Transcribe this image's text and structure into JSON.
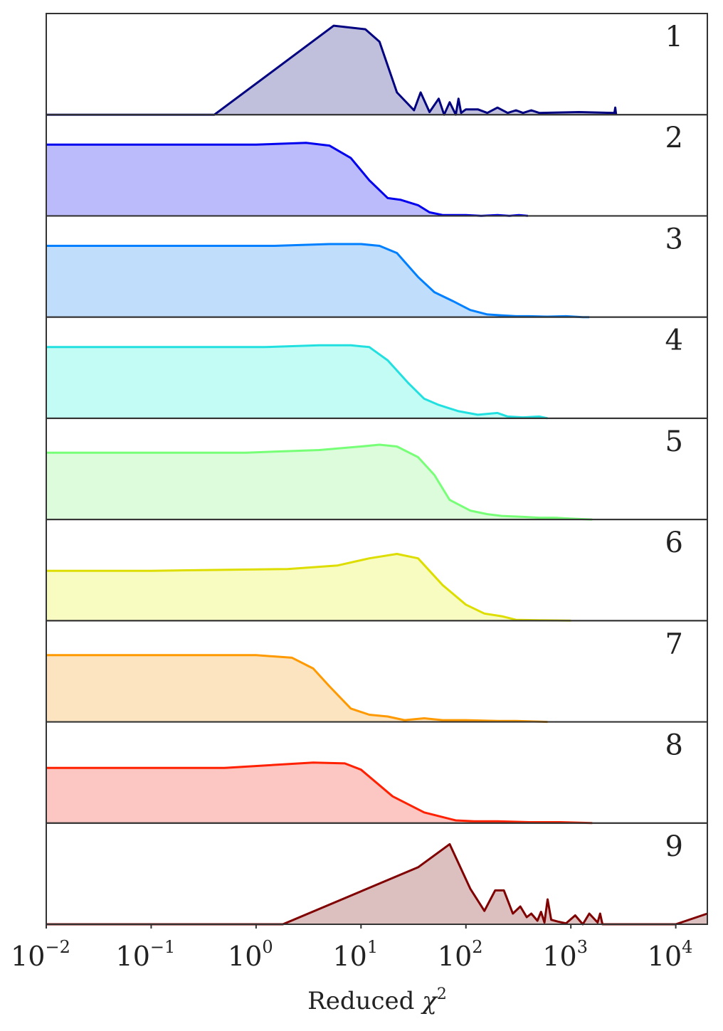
{
  "chart_data": {
    "type": "area",
    "title": "",
    "xlabel": "Reduced",
    "xlabel_symbol": "χ",
    "xlabel_exponent": "2",
    "ylabel": "",
    "xscale": "log",
    "xlim": [
      0.01,
      20000
    ],
    "grid": false,
    "legend": "none",
    "xticks": [
      {
        "value": 0.01,
        "base": "10",
        "exp": "−2"
      },
      {
        "value": 0.1,
        "base": "10",
        "exp": "−1"
      },
      {
        "value": 1,
        "base": "10",
        "exp": "0"
      },
      {
        "value": 10,
        "base": "10",
        "exp": "1"
      },
      {
        "value": 100,
        "base": "10",
        "exp": "2"
      },
      {
        "value": 1000,
        "base": "10",
        "exp": "3"
      },
      {
        "value": 10000,
        "base": "10",
        "exp": "4"
      }
    ],
    "series": [
      {
        "name": "1",
        "color": "#000080",
        "fill": "#c0c0dd",
        "x": [
          0.01,
          0.4,
          5.5,
          11,
          15,
          22,
          32,
          37,
          45,
          55,
          62,
          70,
          80,
          85,
          90,
          100,
          130,
          160,
          200,
          250,
          300,
          350,
          420,
          500,
          1200,
          2600,
          2650,
          2700
        ],
        "y": [
          0,
          0,
          1.0,
          0.96,
          0.82,
          0.25,
          0.05,
          0.25,
          0.03,
          0.18,
          0.0,
          0.14,
          0.0,
          0.18,
          0.02,
          0.06,
          0.06,
          0.02,
          0.08,
          0.02,
          0.05,
          0.02,
          0.05,
          0.02,
          0.03,
          0.02,
          0.08,
          0.0
        ]
      },
      {
        "name": "2",
        "color": "#0000ee",
        "fill": "#bbbbfc",
        "x": [
          0.01,
          1,
          3,
          5,
          8,
          12,
          18,
          24,
          35,
          45,
          60,
          100,
          140,
          200,
          260,
          320,
          390
        ],
        "y": [
          0.8,
          0.8,
          0.82,
          0.79,
          0.65,
          0.4,
          0.2,
          0.18,
          0.12,
          0.04,
          0.01,
          0.01,
          0.0,
          0.01,
          0.0,
          0.01,
          0.0
        ]
      },
      {
        "name": "3",
        "color": "#0080ff",
        "fill": "#c0ddfc",
        "x": [
          0.01,
          1.5,
          5,
          10,
          15,
          22,
          35,
          50,
          75,
          110,
          160,
          220,
          300,
          400,
          600,
          900,
          1300,
          1500
        ],
        "y": [
          0.8,
          0.8,
          0.82,
          0.82,
          0.8,
          0.72,
          0.45,
          0.28,
          0.18,
          0.08,
          0.03,
          0.02,
          0.01,
          0.01,
          0.005,
          0.01,
          0.0,
          0.0
        ]
      },
      {
        "name": "4",
        "color": "#22e0e0",
        "fill": "#c2fcf4",
        "x": [
          0.01,
          1.2,
          4,
          8,
          12,
          18,
          28,
          40,
          55,
          85,
          130,
          200,
          250,
          350,
          500,
          600
        ],
        "y": [
          0.8,
          0.8,
          0.82,
          0.82,
          0.8,
          0.65,
          0.4,
          0.22,
          0.15,
          0.08,
          0.04,
          0.06,
          0.02,
          0.01,
          0.02,
          0.0
        ]
      },
      {
        "name": "5",
        "color": "#77ff77",
        "fill": "#dcfcdc",
        "x": [
          0.01,
          0.8,
          4,
          10,
          15,
          22,
          35,
          50,
          70,
          110,
          160,
          220,
          350,
          500,
          700,
          1000,
          1600
        ],
        "y": [
          0.75,
          0.75,
          0.78,
          0.82,
          0.84,
          0.82,
          0.7,
          0.5,
          0.22,
          0.1,
          0.06,
          0.04,
          0.03,
          0.02,
          0.02,
          0.01,
          0.0
        ]
      },
      {
        "name": "6",
        "color": "#dddd00",
        "fill": "#f8fcc0",
        "x": [
          0.01,
          0.1,
          2,
          6,
          12,
          22,
          35,
          60,
          100,
          150,
          220,
          300,
          500,
          1000
        ],
        "y": [
          0.56,
          0.56,
          0.58,
          0.62,
          0.7,
          0.75,
          0.7,
          0.4,
          0.18,
          0.08,
          0.05,
          0.01,
          0.005,
          0.0
        ]
      },
      {
        "name": "7",
        "color": "#ff9900",
        "fill": "#fce4c0",
        "x": [
          0.01,
          1,
          2.2,
          3.5,
          5,
          8,
          12,
          18,
          26,
          40,
          60,
          100,
          200,
          300,
          600
        ],
        "y": [
          0.75,
          0.75,
          0.72,
          0.6,
          0.4,
          0.15,
          0.08,
          0.06,
          0.02,
          0.04,
          0.02,
          0.02,
          0.01,
          0.01,
          0.0
        ]
      },
      {
        "name": "8",
        "color": "#ff2000",
        "fill": "#fcc6c2",
        "x": [
          0.01,
          0.5,
          3.5,
          7,
          10,
          20,
          40,
          80,
          120,
          200,
          400,
          800,
          1600
        ],
        "y": [
          0.62,
          0.62,
          0.68,
          0.67,
          0.6,
          0.3,
          0.12,
          0.03,
          0.02,
          0.02,
          0.01,
          0.01,
          0.0
        ]
      },
      {
        "name": "9",
        "color": "#800000",
        "fill": "#dcc0c0",
        "x": [
          0.01,
          1.8,
          35,
          70,
          110,
          150,
          190,
          230,
          280,
          330,
          380,
          420,
          480,
          520,
          560,
          600,
          650,
          750,
          900,
          1100,
          1300,
          1500,
          1800,
          1900,
          2000,
          2050,
          10000,
          20000
        ],
        "y": [
          0,
          0,
          0.64,
          0.9,
          0.4,
          0.15,
          0.38,
          0.38,
          0.12,
          0.2,
          0.08,
          0.12,
          0.04,
          0.14,
          0.02,
          0.28,
          0.05,
          0.03,
          0.01,
          0.1,
          0.0,
          0.12,
          0.02,
          0.12,
          0.0,
          0.0,
          0.0,
          0.12
        ]
      }
    ]
  }
}
